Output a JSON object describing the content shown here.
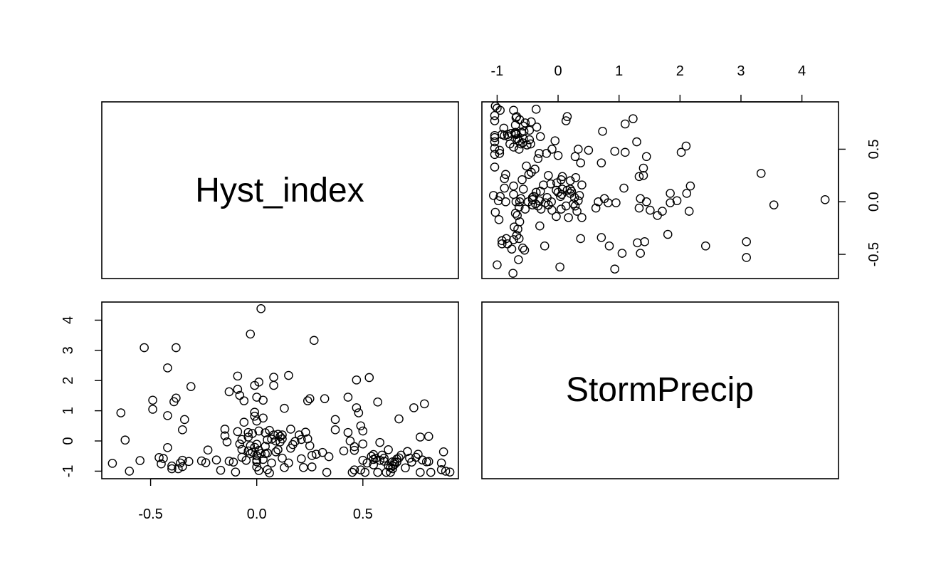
{
  "chart_data": {
    "type": "scatter",
    "variables": [
      "Hyst_index",
      "StormPrecip"
    ],
    "axis_ticks": {
      "Hyst_index": [
        -0.5,
        0.0,
        0.5
      ],
      "StormPrecip": [
        -1,
        0,
        1,
        2,
        3,
        4
      ]
    },
    "axis_tick_labels": {
      "Hyst_index": [
        "-0.5",
        "0.0",
        "0.5"
      ],
      "StormPrecip": [
        "-1",
        "0",
        "1",
        "2",
        "3",
        "4"
      ]
    },
    "axis_ranges": {
      "Hyst_index": [
        -0.73,
        0.95
      ],
      "StormPrecip": [
        -1.25,
        4.6
      ]
    },
    "grid": false,
    "points": [
      [
        -0.68,
        -0.74
      ],
      [
        -0.64,
        0.93
      ],
      [
        -0.62,
        0.03
      ],
      [
        -0.6,
        -1.0
      ],
      [
        -0.55,
        -0.65
      ],
      [
        -0.53,
        3.09
      ],
      [
        -0.49,
        1.35
      ],
      [
        -0.49,
        1.05
      ],
      [
        -0.46,
        -0.55
      ],
      [
        -0.45,
        -0.76
      ],
      [
        -0.44,
        -0.58
      ],
      [
        -0.42,
        -0.22
      ],
      [
        -0.42,
        0.84
      ],
      [
        -0.42,
        2.42
      ],
      [
        -0.4,
        -0.92
      ],
      [
        -0.4,
        -0.83
      ],
      [
        -0.39,
        1.3
      ],
      [
        -0.38,
        3.09
      ],
      [
        -0.38,
        1.42
      ],
      [
        -0.37,
        -0.92
      ],
      [
        -0.36,
        -0.73
      ],
      [
        -0.35,
        -0.85
      ],
      [
        -0.35,
        -0.64
      ],
      [
        -0.35,
        0.37
      ],
      [
        -0.34,
        0.71
      ],
      [
        -0.32,
        -0.68
      ],
      [
        -0.31,
        1.8
      ],
      [
        -0.26,
        -0.66
      ],
      [
        -0.24,
        -0.72
      ],
      [
        -0.23,
        -0.3
      ],
      [
        -0.19,
        -0.63
      ],
      [
        -0.17,
        -0.97
      ],
      [
        -0.15,
        0.39
      ],
      [
        -0.15,
        0.17
      ],
      [
        -0.14,
        -0.03
      ],
      [
        -0.13,
        -0.67
      ],
      [
        -0.13,
        1.63
      ],
      [
        -0.11,
        -0.7
      ],
      [
        -0.1,
        -1.03
      ],
      [
        -0.09,
        0.31
      ],
      [
        -0.09,
        1.71
      ],
      [
        -0.09,
        2.15
      ],
      [
        -0.08,
        -0.1
      ],
      [
        -0.08,
        1.51
      ],
      [
        -0.07,
        -0.54
      ],
      [
        -0.07,
        -0.28
      ],
      [
        -0.07,
        0.05
      ],
      [
        -0.06,
        0.62
      ],
      [
        -0.06,
        1.33
      ],
      [
        -0.05,
        -0.64
      ],
      [
        -0.04,
        0.28
      ],
      [
        -0.04,
        0.13
      ],
      [
        -0.04,
        -0.33
      ],
      [
        -0.03,
        -0.16
      ],
      [
        -0.03,
        -0.42
      ],
      [
        -0.03,
        3.54
      ],
      [
        -0.02,
        -0.37
      ],
      [
        -0.02,
        0.25
      ],
      [
        -0.01,
        -0.21
      ],
      [
        -0.01,
        0.95
      ],
      [
        -0.01,
        1.84
      ],
      [
        -0.01,
        0.82
      ],
      [
        0.0,
        -0.86
      ],
      [
        0.0,
        -0.69
      ],
      [
        0.0,
        -0.63
      ],
      [
        0.0,
        -0.49
      ],
      [
        0.0,
        -0.11
      ],
      [
        0.0,
        0.66
      ],
      [
        0.0,
        1.45
      ],
      [
        0.01,
        -0.98
      ],
      [
        0.01,
        -0.31
      ],
      [
        0.01,
        0.33
      ],
      [
        0.01,
        1.95
      ],
      [
        0.02,
        4.38
      ],
      [
        0.02,
        -0.42
      ],
      [
        0.03,
        -0.61
      ],
      [
        0.03,
        0.76
      ],
      [
        0.03,
        1.35
      ],
      [
        0.04,
        -0.42
      ],
      [
        0.04,
        -0.18
      ],
      [
        0.04,
        0.27
      ],
      [
        0.05,
        -0.95
      ],
      [
        0.05,
        -0.4
      ],
      [
        0.05,
        0.04
      ],
      [
        0.06,
        -1.06
      ],
      [
        0.06,
        0.35
      ],
      [
        0.07,
        -0.73
      ],
      [
        0.07,
        0.06
      ],
      [
        0.08,
        0.2
      ],
      [
        0.08,
        1.84
      ],
      [
        0.08,
        2.11
      ],
      [
        0.09,
        -0.36
      ],
      [
        0.09,
        0.0
      ],
      [
        0.1,
        -0.29
      ],
      [
        0.1,
        0.22
      ],
      [
        0.11,
        -0.03
      ],
      [
        0.11,
        0.15
      ],
      [
        0.12,
        -0.57
      ],
      [
        0.12,
        0.07
      ],
      [
        0.12,
        0.2
      ],
      [
        0.13,
        -0.88
      ],
      [
        0.13,
        1.08
      ],
      [
        0.15,
        -0.73
      ],
      [
        0.15,
        2.17
      ],
      [
        0.16,
        0.39
      ],
      [
        0.16,
        -0.24
      ],
      [
        0.17,
        -0.12
      ],
      [
        0.18,
        -0.02
      ],
      [
        0.2,
        0.2
      ],
      [
        0.21,
        0.05
      ],
      [
        0.21,
        -0.59
      ],
      [
        0.22,
        -0.88
      ],
      [
        0.23,
        0.29
      ],
      [
        0.24,
        1.33
      ],
      [
        0.24,
        0.07
      ],
      [
        0.25,
        1.4
      ],
      [
        0.25,
        -0.16
      ],
      [
        0.26,
        -0.48
      ],
      [
        0.26,
        -0.86
      ],
      [
        0.27,
        3.33
      ],
      [
        0.28,
        -0.44
      ],
      [
        0.31,
        -0.38
      ],
      [
        0.32,
        1.4
      ],
      [
        0.33,
        -1.04
      ],
      [
        0.34,
        -0.52
      ],
      [
        0.37,
        0.37
      ],
      [
        0.37,
        0.71
      ],
      [
        0.41,
        -0.33
      ],
      [
        0.43,
        0.28
      ],
      [
        0.43,
        1.45
      ],
      [
        0.44,
        0.0
      ],
      [
        0.45,
        -1.04
      ],
      [
        0.46,
        -0.96
      ],
      [
        0.46,
        -0.31
      ],
      [
        0.46,
        -0.19
      ],
      [
        0.47,
        2.02
      ],
      [
        0.47,
        1.1
      ],
      [
        0.48,
        0.93
      ],
      [
        0.49,
        0.5
      ],
      [
        0.49,
        -0.96
      ],
      [
        0.5,
        -0.1
      ],
      [
        0.5,
        0.33
      ],
      [
        0.5,
        -0.64
      ],
      [
        0.51,
        -1.04
      ],
      [
        0.52,
        -0.73
      ],
      [
        0.53,
        2.1
      ],
      [
        0.54,
        -0.51
      ],
      [
        0.55,
        -0.61
      ],
      [
        0.55,
        -0.79
      ],
      [
        0.55,
        -0.45
      ],
      [
        0.56,
        -0.58
      ],
      [
        0.57,
        -1.04
      ],
      [
        0.57,
        1.29
      ],
      [
        0.58,
        -0.64
      ],
      [
        0.58,
        -0.05
      ],
      [
        0.59,
        -0.47
      ],
      [
        0.6,
        -0.67
      ],
      [
        0.6,
        -0.57
      ],
      [
        0.61,
        -1.04
      ],
      [
        0.62,
        -0.82
      ],
      [
        0.62,
        -0.29
      ],
      [
        0.63,
        -1.04
      ],
      [
        0.63,
        -0.88
      ],
      [
        0.64,
        -0.69
      ],
      [
        0.64,
        -0.92
      ],
      [
        0.64,
        -0.83
      ],
      [
        0.65,
        -0.77
      ],
      [
        0.65,
        -0.7
      ],
      [
        0.66,
        -0.7
      ],
      [
        0.66,
        -0.6
      ],
      [
        0.67,
        0.73
      ],
      [
        0.67,
        -0.56
      ],
      [
        0.68,
        -0.47
      ],
      [
        0.7,
        -0.89
      ],
      [
        0.71,
        -0.35
      ],
      [
        0.72,
        -0.57
      ],
      [
        0.73,
        -0.7
      ],
      [
        0.74,
        1.1
      ],
      [
        0.75,
        -0.54
      ],
      [
        0.76,
        -0.44
      ],
      [
        0.77,
        0.13
      ],
      [
        0.77,
        -1.04
      ],
      [
        0.78,
        -0.63
      ],
      [
        0.79,
        1.23
      ],
      [
        0.8,
        -0.69
      ],
      [
        0.81,
        -0.68
      ],
      [
        0.81,
        0.15
      ],
      [
        0.82,
        -1.04
      ],
      [
        0.87,
        -0.73
      ],
      [
        0.87,
        -0.95
      ],
      [
        0.88,
        -0.36
      ],
      [
        0.89,
        -1.0
      ],
      [
        0.91,
        -1.03
      ]
    ]
  }
}
